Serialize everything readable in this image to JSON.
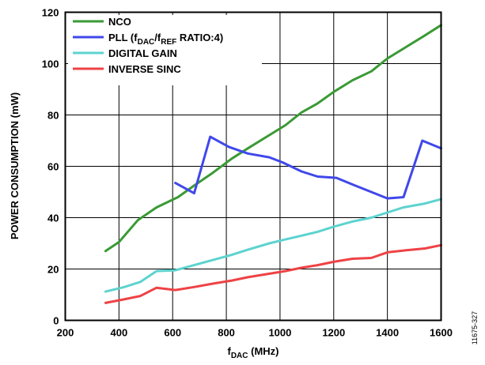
{
  "chart_data": {
    "type": "line",
    "xlabel": {
      "main": "f",
      "sub": "DAC",
      "rest": " (MHz)"
    },
    "ylabel": "POWER CONSUMPTION (mW)",
    "xlim": [
      200,
      1600
    ],
    "ylim": [
      0,
      120
    ],
    "x_ticks": [
      200,
      400,
      600,
      800,
      1000,
      1200,
      1400,
      1600
    ],
    "y_ticks": [
      0,
      20,
      40,
      60,
      80,
      100,
      120
    ],
    "grid": true,
    "legend_position": "top-left",
    "figure_id": "11675-327",
    "series": [
      {
        "name": "NCO",
        "color": "#3a9a35",
        "x": [
          350,
          400,
          470,
          540,
          620,
          680,
          750,
          820,
          880,
          950,
          1020,
          1080,
          1140,
          1200,
          1270,
          1340,
          1400,
          1470,
          1540,
          1600
        ],
        "y": [
          27,
          30.5,
          39,
          44,
          48,
          52.5,
          57.5,
          63,
          67,
          71.5,
          76,
          81,
          84.5,
          89,
          93.5,
          97,
          102,
          106.5,
          111,
          115
        ]
      },
      {
        "name_parts": [
          {
            "text": "PLL (f",
            "sub": false
          },
          {
            "text": "DAC",
            "sub": true
          },
          {
            "text": "/f",
            "sub": false
          },
          {
            "text": "REF",
            "sub": true
          },
          {
            "text": " RATIO:4)",
            "sub": false
          }
        ],
        "color": "#4048ea",
        "x": [
          610,
          680,
          740,
          810,
          880,
          960,
          1010,
          1080,
          1140,
          1210,
          1280,
          1340,
          1400,
          1460,
          1530,
          1600
        ],
        "y": [
          53.5,
          49.5,
          71.5,
          67.5,
          65,
          63.5,
          61.5,
          58,
          56,
          55.5,
          52.5,
          50,
          47.5,
          48,
          70,
          67
        ]
      },
      {
        "name": "DIGITAL GAIN",
        "color": "#5dd3cf",
        "x": [
          350,
          420,
          480,
          540,
          610,
          680,
          750,
          820,
          880,
          960,
          1020,
          1080,
          1140,
          1200,
          1270,
          1340,
          1400,
          1460,
          1540,
          1600
        ],
        "y": [
          11.2,
          13,
          15,
          19.2,
          19.5,
          21.5,
          23.5,
          25.5,
          27.5,
          30,
          31.5,
          33,
          34.5,
          36.5,
          38.5,
          40,
          42,
          44,
          45.5,
          47.2
        ]
      },
      {
        "name": "INVERSE SINC",
        "color": "#ee4245",
        "x": [
          350,
          410,
          480,
          540,
          610,
          680,
          750,
          820,
          880,
          950,
          1020,
          1080,
          1140,
          1200,
          1270,
          1340,
          1400,
          1470,
          1540,
          1600
        ],
        "y": [
          6.8,
          8,
          9.5,
          12.7,
          11.8,
          13,
          14.3,
          15.5,
          16.8,
          18,
          19.2,
          20.5,
          21.5,
          22.8,
          24,
          24.3,
          26.5,
          27.3,
          28,
          29.3
        ]
      }
    ]
  }
}
